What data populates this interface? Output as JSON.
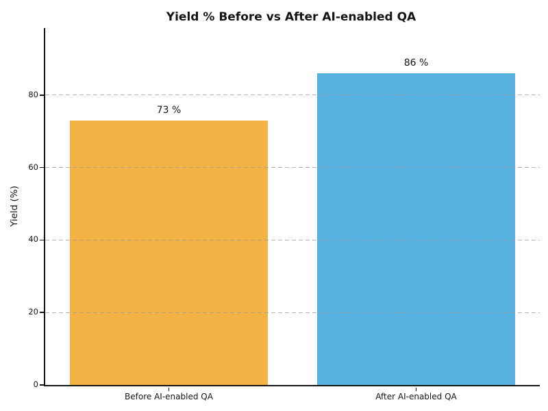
{
  "chart_data": {
    "type": "bar",
    "title": "Yield % Before vs After AI-enabled QA",
    "xlabel": "",
    "ylabel": "Yield (%)",
    "categories": [
      "Before AI-enabled QA",
      "After AI-enabled QA"
    ],
    "values": [
      73,
      86
    ],
    "value_labels": [
      "73 %",
      "86 %"
    ],
    "bar_colors": [
      "#F2B344",
      "#56B1E0"
    ],
    "ylim": [
      0,
      98.5
    ],
    "yticks": [
      0,
      20,
      40,
      60,
      80
    ],
    "grid": "horizontal-dashed",
    "grid_color": "#9B9B9B",
    "legend_position": "none",
    "background_color": "#FFFFFF",
    "spines": [
      "left",
      "bottom"
    ],
    "bar_width_fraction": 0.8
  }
}
